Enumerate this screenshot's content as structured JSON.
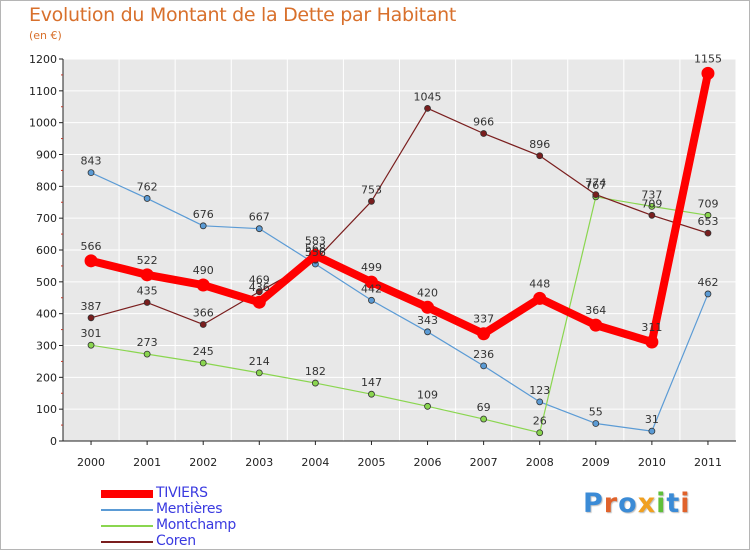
{
  "title": "Evolution du Montant de la Dette par Habitant",
  "subtitle": "(en €)",
  "logo": {
    "text": "Proxiti",
    "letter_colors": [
      "#3b8bd6",
      "#e0622b",
      "#3b8bd6",
      "#f0a020",
      "#5fbf3a",
      "#3b8bd6",
      "#e0622b"
    ]
  },
  "chart_data": {
    "type": "line",
    "x": [
      "2000",
      "2001",
      "2002",
      "2003",
      "2004",
      "2005",
      "2006",
      "2007",
      "2008",
      "2009",
      "2010",
      "2011"
    ],
    "ylim": [
      0,
      1200
    ],
    "yticks": [
      0,
      100,
      200,
      300,
      400,
      500,
      600,
      700,
      800,
      900,
      1000,
      1100,
      1200
    ],
    "grid": true,
    "legend_position": "bottom-left",
    "series": [
      {
        "name": "TIVIERS",
        "color": "#ff0000",
        "emphasis": true,
        "values": [
          566,
          522,
          490,
          436,
          583,
          499,
          420,
          337,
          448,
          364,
          311,
          1155
        ],
        "labels": [
          "566",
          "522",
          "490",
          "436",
          "583",
          "499",
          "420",
          "337",
          "448",
          "364",
          "311",
          "1155"
        ]
      },
      {
        "name": "Mentières",
        "color": "#5b9bd5",
        "values": [
          843,
          762,
          676,
          667,
          556,
          442,
          343,
          236,
          123,
          55,
          31,
          462
        ],
        "labels": [
          "843",
          "762",
          "676",
          "667",
          "556",
          "442",
          "343",
          "236",
          "123",
          "55",
          "31",
          "462"
        ]
      },
      {
        "name": "Montchamp",
        "color": "#8ad64f",
        "values": [
          301,
          273,
          245,
          214,
          182,
          147,
          109,
          69,
          26,
          767,
          737,
          709
        ],
        "labels": [
          "301",
          "273",
          "245",
          "214",
          "182",
          "147",
          "109",
          "69",
          "26",
          "767",
          "737",
          "709"
        ]
      },
      {
        "name": "Coren",
        "color": "#7a1e1e",
        "values": [
          387,
          435,
          366,
          469,
          568,
          753,
          1045,
          966,
          896,
          774,
          709,
          653
        ],
        "labels": [
          "387",
          "435",
          "366",
          "469",
          "568",
          "753",
          "1045",
          "966",
          "896",
          "774",
          "709",
          "653"
        ]
      }
    ]
  }
}
